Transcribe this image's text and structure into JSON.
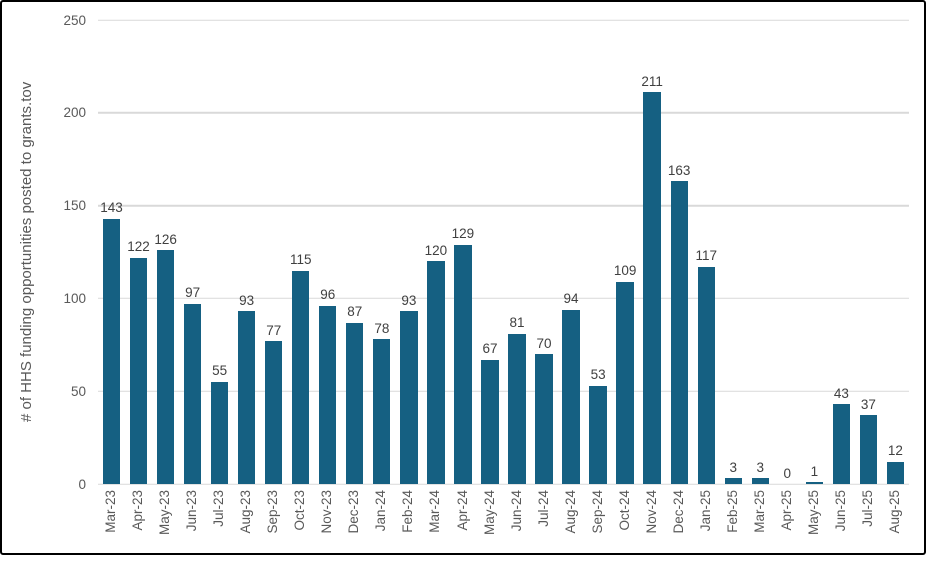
{
  "figure": {
    "background": "#FFFFFF",
    "border_color": "#000000"
  },
  "chart_data": {
    "type": "bar",
    "title": "",
    "xlabel": "",
    "ylabel": "# of HHS funding opportunities posted to grants.tov",
    "categories": [
      "Mar-23",
      "Apr-23",
      "May-23",
      "Jun-23",
      "Jul-23",
      "Aug-23",
      "Sep-23",
      "Oct-23",
      "Nov-23",
      "Dec-23",
      "Jan-24",
      "Feb-24",
      "Mar-24",
      "Apr-24",
      "May-24",
      "Jun-24",
      "Jul-24",
      "Aug-24",
      "Sep-24",
      "Oct-24",
      "Nov-24",
      "Dec-24",
      "Jan-25",
      "Feb-25",
      "Mar-25",
      "Apr-25",
      "May-25",
      "Jun-25",
      "Jul-25",
      "Aug-25"
    ],
    "values": [
      143,
      122,
      126,
      97,
      55,
      93,
      77,
      115,
      96,
      87,
      78,
      93,
      120,
      129,
      67,
      81,
      70,
      94,
      53,
      109,
      211,
      163,
      117,
      3,
      3,
      0,
      1,
      43,
      37,
      12
    ],
    "data_labels_shown": true,
    "ylim": [
      0,
      250
    ],
    "y_ticks": [
      0,
      50,
      100,
      150,
      200,
      250
    ],
    "grid": "horizontal",
    "legend": "none",
    "bar_color": "#156082",
    "label_color": "#404040",
    "axis_color": "#595959",
    "gridline_color": "#D9D9D9"
  }
}
